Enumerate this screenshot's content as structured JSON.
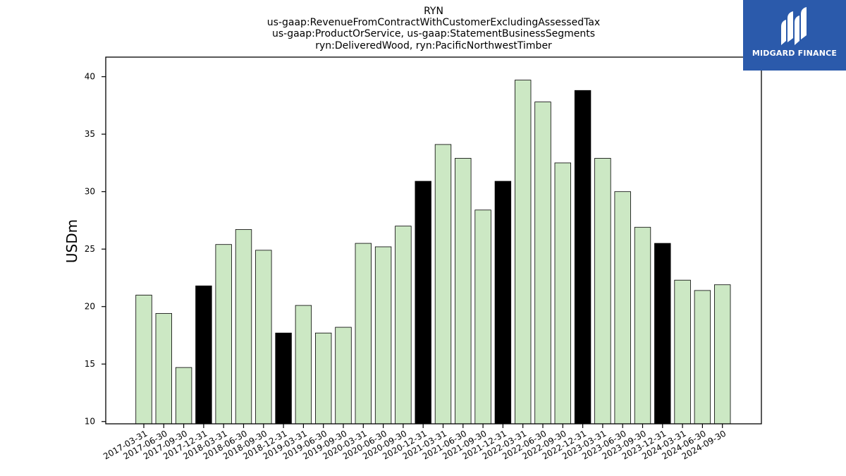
{
  "chart_data": {
    "type": "bar",
    "title_lines": [
      "RYN",
      "us-gaap:RevenueFromContractWithCustomerExcludingAssessedTax",
      "us-gaap:ProductOrService, us-gaap:StatementBusinessSegments",
      "ryn:DeliveredWood, ryn:PacificNorthwestTimber"
    ],
    "ylabel": "USDm",
    "xlabel": "",
    "ylim": [
      9.8,
      41.7
    ],
    "yticks": [
      10,
      15,
      20,
      25,
      30,
      35,
      40
    ],
    "categories": [
      "2017-03-31",
      "2017-06-30",
      "2017-09-30",
      "2017-12-31",
      "2018-03-31",
      "2018-06-30",
      "2018-09-30",
      "2018-12-31",
      "2019-03-31",
      "2019-06-30",
      "2019-09-30",
      "2020-03-31",
      "2020-06-30",
      "2020-09-30",
      "2020-12-31",
      "2021-03-31",
      "2021-06-30",
      "2021-09-30",
      "2021-12-31",
      "2022-03-31",
      "2022-06-30",
      "2022-09-30",
      "2022-12-31",
      "2023-03-31",
      "2023-06-30",
      "2023-09-30",
      "2023-12-31",
      "2024-03-31",
      "2024-06-30",
      "2024-09-30"
    ],
    "values": [
      21.0,
      19.4,
      14.7,
      21.8,
      25.4,
      26.7,
      24.9,
      17.7,
      20.1,
      17.7,
      18.2,
      25.5,
      25.2,
      27.0,
      30.9,
      34.1,
      32.9,
      28.4,
      30.9,
      39.7,
      37.8,
      32.5,
      38.8,
      32.9,
      30.0,
      26.9,
      25.5,
      22.3,
      21.4,
      21.9
    ],
    "highlighted": [
      false,
      false,
      false,
      true,
      false,
      false,
      false,
      true,
      false,
      false,
      false,
      false,
      false,
      false,
      true,
      false,
      false,
      false,
      true,
      false,
      false,
      false,
      true,
      false,
      false,
      false,
      true,
      false,
      false,
      false
    ],
    "colors": {
      "bar": "#cce8c4",
      "highlight": "#000000",
      "edge": "#000000"
    },
    "grid": false
  },
  "logo": {
    "text": "MIDGARD FINANCE",
    "background": "#2b5aab"
  }
}
